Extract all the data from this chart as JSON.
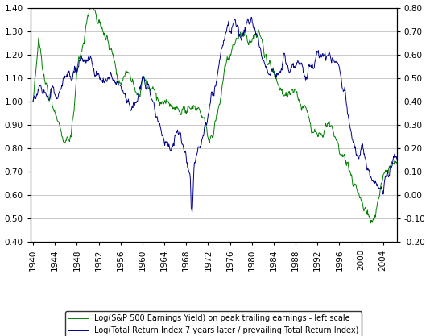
{
  "left_ylim": [
    0.4,
    1.4
  ],
  "right_ylim": [
    -0.2,
    0.8
  ],
  "left_yticks": [
    0.4,
    0.5,
    0.6,
    0.7,
    0.8,
    0.9,
    1.0,
    1.1,
    1.2,
    1.3,
    1.4
  ],
  "right_yticks": [
    -0.2,
    -0.1,
    0.0,
    0.1,
    0.2,
    0.3,
    0.4,
    0.5,
    0.6,
    0.7,
    0.8
  ],
  "xticks": [
    1940,
    1944,
    1948,
    1952,
    1956,
    1960,
    1964,
    1968,
    1972,
    1976,
    1980,
    1984,
    1988,
    1992,
    1996,
    2000,
    2004
  ],
  "xlim": [
    1939.5,
    2006.5
  ],
  "green_color": "#008000",
  "blue_color": "#00008B",
  "legend1": "Log(S&P 500 Earnings Yield) on peak trailing earnings - left scale",
  "legend2": "Log(Total Return Index 7 years later / prevailing Total Return Index)",
  "background_color": "#ffffff",
  "plot_bg_color": "#ffffff",
  "grid_color": "#c0c0c0",
  "figsize": [
    5.34,
    4.17
  ],
  "dpi": 100
}
